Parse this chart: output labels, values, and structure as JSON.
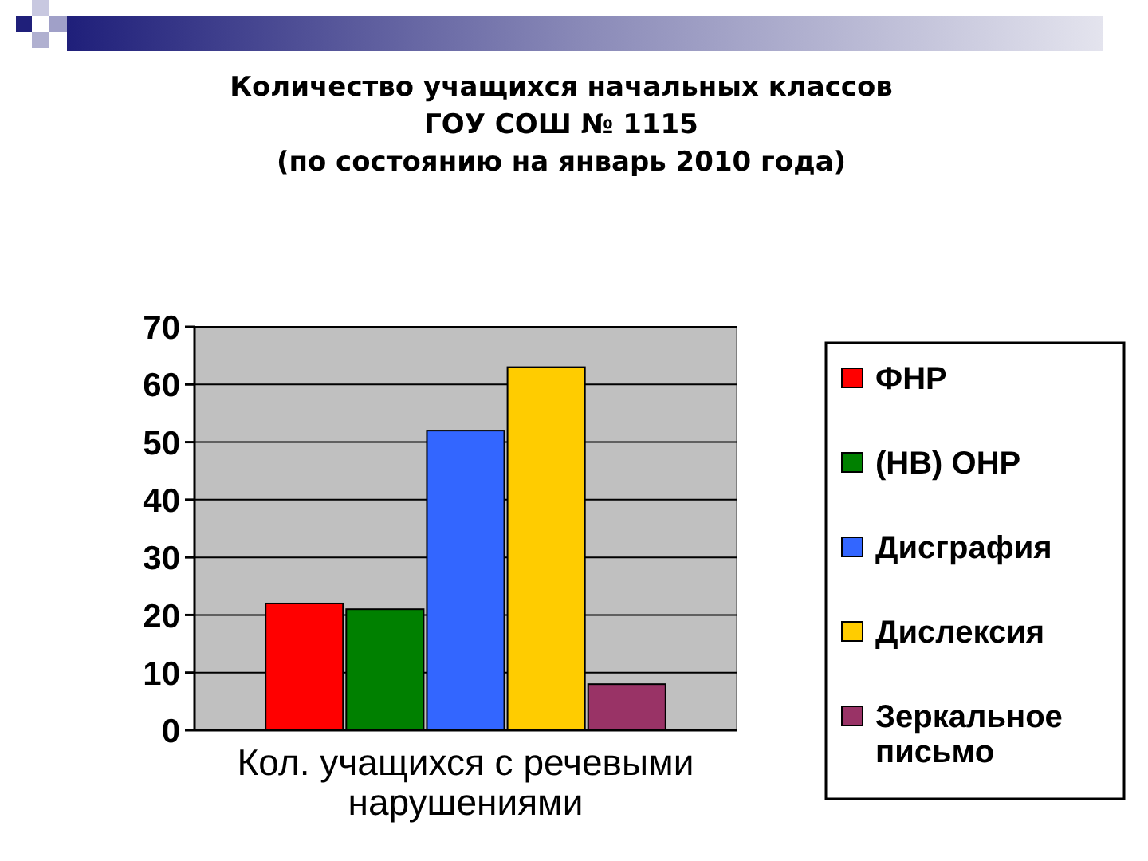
{
  "chart_data": {
    "type": "bar",
    "title": "Количество учащихся начальных классов\nГОУ СОШ № 1115\n(по состоянию на январь 2010 года)",
    "xlabel": "Кол. учащихся с речевыми нарушениями",
    "categories": [
      null
    ],
    "series": [
      {
        "name": "ФНР",
        "color": "#ff0000",
        "values": [
          22
        ]
      },
      {
        "name": "(НВ) ОНР",
        "color": "#008000",
        "values": [
          21
        ]
      },
      {
        "name": "Дисграфия",
        "color": "#3366ff",
        "values": [
          52
        ]
      },
      {
        "name": "Дислексия",
        "color": "#ffcc00",
        "values": [
          63
        ]
      },
      {
        "name": "Зеркальное письмо",
        "color": "#993366",
        "values": [
          8
        ]
      }
    ],
    "ylim": [
      0,
      70
    ],
    "yticks": [
      0,
      10,
      20,
      30,
      40,
      50,
      60,
      70
    ],
    "grid": "y",
    "legend": "right"
  }
}
